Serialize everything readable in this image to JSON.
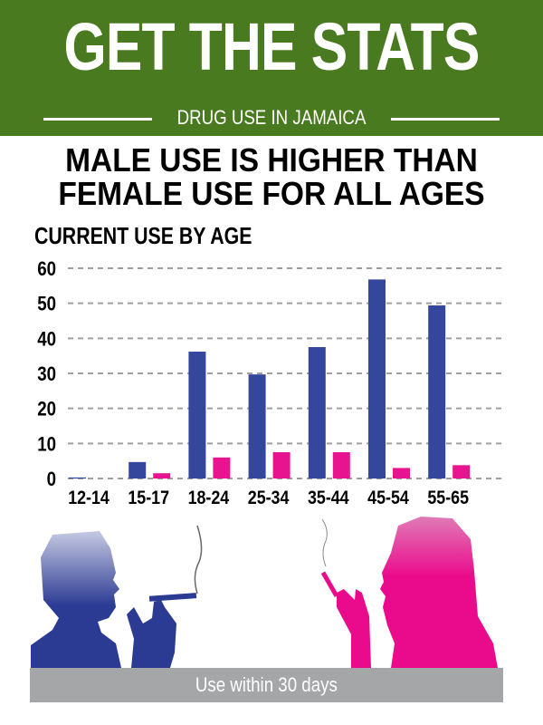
{
  "header": {
    "title": "GET THE STATS",
    "subtitle": "DRUG USE IN JAMAICA",
    "background": "#4a7a1f"
  },
  "headline": {
    "line1": "MALE USE IS HIGHER THAN",
    "line2": "FEMALE USE FOR ALL AGES"
  },
  "chart_data": {
    "type": "bar",
    "title": "CURRENT USE BY AGE",
    "categories": [
      "12-14",
      "15-17",
      "18-24",
      "25-34",
      "35-44",
      "45-54",
      "55-65"
    ],
    "series": [
      {
        "values": [
          0.3,
          4.7,
          36.2,
          29.7,
          37.5,
          56.8,
          49.4
        ],
        "color": "#34479c"
      },
      {
        "values": [
          0,
          1.5,
          6.0,
          7.5,
          7.5,
          3.0,
          3.8
        ],
        "color": "#e8138f"
      }
    ],
    "yticks": [
      "0",
      "10",
      "20",
      "30",
      "40",
      "50",
      "60"
    ],
    "ylim": [
      0,
      60
    ],
    "grid": "dashed horizontal"
  },
  "footer": {
    "label": "Use within 30 days"
  },
  "illustrations": {
    "male": "male-smoker-silhouette",
    "female": "female-smoker-silhouette"
  }
}
